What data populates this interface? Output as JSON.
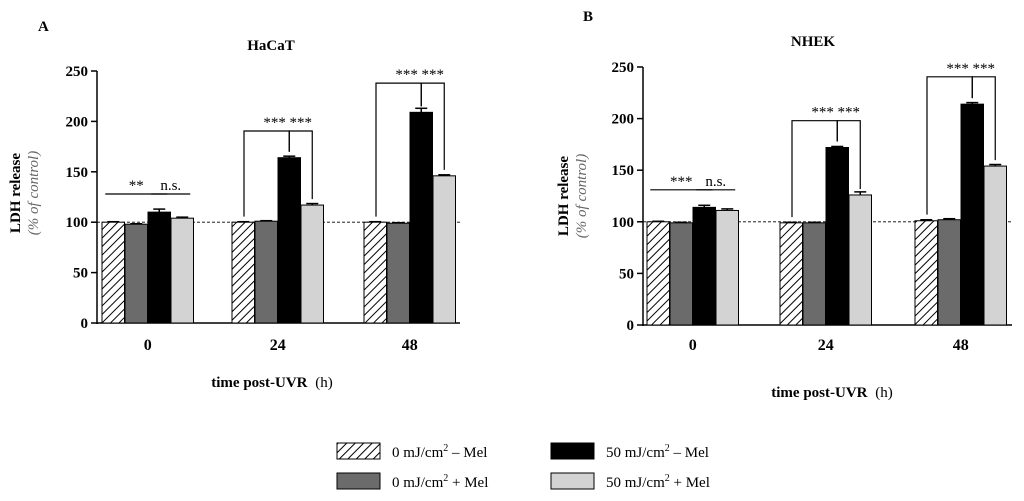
{
  "chart_data": [
    {
      "type": "bar",
      "panel": "A",
      "title": "HaCaT",
      "ylabel": "LDH release",
      "ylabel_sub": "(% of control)",
      "xlabel_main": "time post-UVR",
      "xlabel_unit": "(h)",
      "ylim": [
        0,
        250
      ],
      "yticks": [
        0,
        50,
        100,
        150,
        200,
        250
      ],
      "reference_line": 100,
      "categories": [
        "0",
        "24",
        "48"
      ],
      "series": [
        {
          "name": "0 mJ/cm² – Mel",
          "values": [
            100,
            100,
            100
          ],
          "errors": [
            0.5,
            0.5,
            0.5
          ]
        },
        {
          "name": "0 mJ/cm² + Mel",
          "values": [
            98,
            101,
            99
          ],
          "errors": [
            0.5,
            0.5,
            0.5
          ]
        },
        {
          "name": "50 mJ/cm² – Mel",
          "values": [
            110,
            164,
            209
          ],
          "errors": [
            3,
            1.5,
            4
          ]
        },
        {
          "name": "50 mJ/cm² + Mel",
          "values": [
            104,
            117,
            146
          ],
          "errors": [
            1,
            1.5,
            1
          ]
        }
      ],
      "annotations": [
        {
          "category": "0",
          "from": 0,
          "to": 2,
          "label": "**",
          "style": "flat"
        },
        {
          "category": "0",
          "from": 2,
          "to": 3,
          "label": "n.s.",
          "style": "flat"
        },
        {
          "category": "24",
          "from": 0,
          "to": 2,
          "label": "***",
          "style": "bracket"
        },
        {
          "category": "24",
          "from": 2,
          "to": 3,
          "label": "***",
          "style": "bracket"
        },
        {
          "category": "48",
          "from": 0,
          "to": 2,
          "label": "***",
          "style": "bracket"
        },
        {
          "category": "48",
          "from": 2,
          "to": 3,
          "label": "***",
          "style": "bracket"
        }
      ]
    },
    {
      "type": "bar",
      "panel": "B",
      "title": "NHEK",
      "ylabel": "LDH release",
      "ylabel_sub": "(% of control)",
      "xlabel_main": "time post-UVR",
      "xlabel_unit": "(h)",
      "ylim": [
        0,
        250
      ],
      "yticks": [
        0,
        50,
        100,
        150,
        200,
        250
      ],
      "reference_line": 100,
      "categories": [
        "0",
        "24",
        "48"
      ],
      "series": [
        {
          "name": "0 mJ/cm² – Mel",
          "values": [
            100,
            99,
            101
          ],
          "errors": [
            0.5,
            0.5,
            1
          ]
        },
        {
          "name": "0 mJ/cm² + Mel",
          "values": [
            99,
            99,
            102
          ],
          "errors": [
            0.5,
            0.5,
            1
          ]
        },
        {
          "name": "50 mJ/cm² – Mel",
          "values": [
            114,
            172,
            214
          ],
          "errors": [
            2,
            1,
            1.5
          ]
        },
        {
          "name": "50 mJ/cm² + Mel",
          "values": [
            111,
            126,
            154
          ],
          "errors": [
            1.5,
            3,
            1.5
          ]
        }
      ],
      "annotations": [
        {
          "category": "0",
          "from": 0,
          "to": 2,
          "label": "***",
          "style": "flat"
        },
        {
          "category": "0",
          "from": 2,
          "to": 3,
          "label": "n.s.",
          "style": "flat"
        },
        {
          "category": "24",
          "from": 0,
          "to": 2,
          "label": "***",
          "style": "bracket"
        },
        {
          "category": "24",
          "from": 2,
          "to": 3,
          "label": "***",
          "style": "bracket"
        },
        {
          "category": "48",
          "from": 0,
          "to": 2,
          "label": "***",
          "style": "bracket"
        },
        {
          "category": "48",
          "from": 2,
          "to": 3,
          "label": "***",
          "style": "bracket"
        }
      ]
    }
  ],
  "legend": {
    "items": [
      {
        "label_main": "0 mJ/cm",
        "label_sup": "2",
        "label_tail": " – Mel"
      },
      {
        "label_main": "0 mJ/cm",
        "label_sup": "2",
        "label_tail": " + Mel"
      },
      {
        "label_main": "50 mJ/cm",
        "label_sup": "2",
        "label_tail": " – Mel"
      },
      {
        "label_main": "50 mJ/cm",
        "label_sup": "2",
        "label_tail": " + Mel"
      }
    ]
  },
  "colors": {
    "series_fill": [
      "hatch",
      "#6b6b6b",
      "#000000",
      "#d3d3d3"
    ],
    "axis": "#000000"
  }
}
